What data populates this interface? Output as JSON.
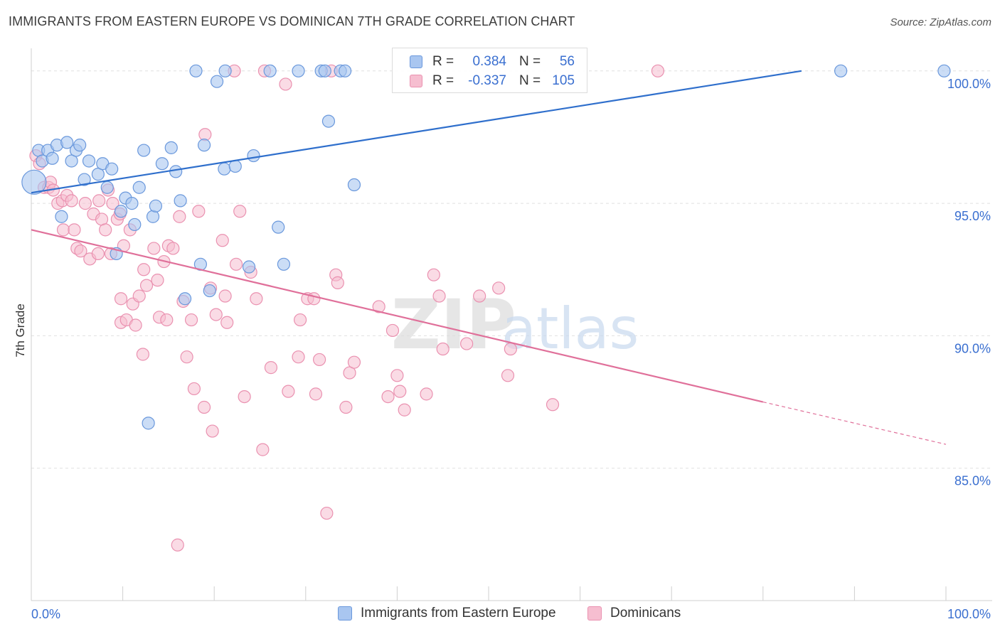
{
  "header": {
    "title": "IMMIGRANTS FROM EASTERN EUROPE VS DOMINICAN 7TH GRADE CORRELATION CHART",
    "source": "Source: ZipAtlas.com"
  },
  "legend": {
    "rows": [
      {
        "r_label": "R =",
        "r_value": "0.384",
        "n_label": "N =",
        "n_value": "56"
      },
      {
        "r_label": "R =",
        "r_value": "-0.337",
        "n_label": "N =",
        "n_value": "105"
      }
    ]
  },
  "bottom_legend": {
    "series1": "Immigrants from Eastern Europe",
    "series2": "Dominicans"
  },
  "colors": {
    "blue_fill": "#a9c6f0",
    "blue_stroke": "#6a98dc",
    "blue_line": "#2f6fcc",
    "pink_fill": "#f6bed0",
    "pink_stroke": "#ea91b0",
    "pink_line": "#e0709a",
    "tick_text": "#3a6fd0",
    "grid": "#e0e0e0"
  },
  "watermark": {
    "part1": "ZIP",
    "part2": "atlas"
  },
  "chart_data": {
    "type": "scatter",
    "ylabel": "7th Grade",
    "xlabel": "",
    "xlim": [
      0,
      100
    ],
    "ylim": [
      80.0,
      100.8
    ],
    "x_tick_labels": [
      {
        "x": 0,
        "label": "0.0%"
      },
      {
        "x": 100,
        "label": "100.0%"
      }
    ],
    "y_tick_labels": [
      {
        "y": 100,
        "label": "100.0%"
      },
      {
        "y": 95,
        "label": "95.0%"
      },
      {
        "y": 90,
        "label": "90.0%"
      },
      {
        "y": 85,
        "label": "85.0%"
      }
    ],
    "series": [
      {
        "name": "Immigrants from Eastern Europe",
        "color": "#a9c6f0",
        "trend": {
          "x0": 0,
          "y0": 95.4,
          "x1": 84.2,
          "y1": 100.0
        },
        "points": [
          [
            0.3,
            95.8
          ],
          [
            0.8,
            97.0
          ],
          [
            1.2,
            96.6
          ],
          [
            1.8,
            97.0
          ],
          [
            2.3,
            96.7
          ],
          [
            2.8,
            97.2
          ],
          [
            3.3,
            94.5
          ],
          [
            3.9,
            97.3
          ],
          [
            4.4,
            96.6
          ],
          [
            4.9,
            97.0
          ],
          [
            5.3,
            97.2
          ],
          [
            5.8,
            95.9
          ],
          [
            6.3,
            96.6
          ],
          [
            7.3,
            96.1
          ],
          [
            7.8,
            96.5
          ],
          [
            8.3,
            95.6
          ],
          [
            8.8,
            96.3
          ],
          [
            9.3,
            93.1
          ],
          [
            9.8,
            94.7
          ],
          [
            10.3,
            95.2
          ],
          [
            11.0,
            95.0
          ],
          [
            11.3,
            94.2
          ],
          [
            11.8,
            95.6
          ],
          [
            12.3,
            97.0
          ],
          [
            12.8,
            86.7
          ],
          [
            13.3,
            94.5
          ],
          [
            13.6,
            94.9
          ],
          [
            14.3,
            96.5
          ],
          [
            15.3,
            97.1
          ],
          [
            15.8,
            96.2
          ],
          [
            16.3,
            95.1
          ],
          [
            16.8,
            91.4
          ],
          [
            18.0,
            100.0
          ],
          [
            18.5,
            92.7
          ],
          [
            18.9,
            97.2
          ],
          [
            19.5,
            91.7
          ],
          [
            20.3,
            99.6
          ],
          [
            21.1,
            96.3
          ],
          [
            21.2,
            100.0
          ],
          [
            22.3,
            96.4
          ],
          [
            23.8,
            92.6
          ],
          [
            24.3,
            96.8
          ],
          [
            26.1,
            100.0
          ],
          [
            27.0,
            94.1
          ],
          [
            27.6,
            92.7
          ],
          [
            29.2,
            100.0
          ],
          [
            31.7,
            100.0
          ],
          [
            32.1,
            100.0
          ],
          [
            32.5,
            98.1
          ],
          [
            33.8,
            100.0
          ],
          [
            34.3,
            100.0
          ],
          [
            35.3,
            95.7
          ],
          [
            88.5,
            100.0
          ],
          [
            99.8,
            100.0
          ]
        ]
      },
      {
        "name": "Dominicans",
        "color": "#f6bed0",
        "trend": {
          "x0": 0,
          "y0": 94.0,
          "x1": 80.0,
          "y1": 87.5,
          "dash_x1": 100,
          "dash_y1": 85.9
        },
        "points": [
          [
            0.5,
            96.8
          ],
          [
            0.9,
            96.5
          ],
          [
            1.4,
            95.6
          ],
          [
            1.9,
            95.6
          ],
          [
            2.1,
            95.8
          ],
          [
            2.4,
            95.5
          ],
          [
            2.9,
            95.0
          ],
          [
            3.4,
            95.1
          ],
          [
            3.5,
            94.0
          ],
          [
            3.9,
            95.3
          ],
          [
            4.4,
            95.1
          ],
          [
            4.7,
            94.0
          ],
          [
            5.0,
            93.3
          ],
          [
            5.4,
            93.2
          ],
          [
            5.9,
            95.0
          ],
          [
            6.4,
            92.9
          ],
          [
            6.8,
            94.6
          ],
          [
            7.3,
            93.1
          ],
          [
            7.4,
            95.1
          ],
          [
            7.7,
            94.4
          ],
          [
            8.1,
            94.0
          ],
          [
            8.4,
            95.5
          ],
          [
            8.7,
            93.1
          ],
          [
            8.9,
            95.0
          ],
          [
            9.4,
            94.4
          ],
          [
            9.7,
            94.6
          ],
          [
            9.8,
            91.4
          ],
          [
            9.8,
            90.5
          ],
          [
            10.1,
            93.4
          ],
          [
            10.4,
            90.6
          ],
          [
            10.8,
            94.0
          ],
          [
            11.1,
            91.2
          ],
          [
            11.4,
            90.4
          ],
          [
            11.8,
            91.5
          ],
          [
            12.2,
            89.3
          ],
          [
            12.3,
            92.5
          ],
          [
            12.6,
            91.9
          ],
          [
            13.4,
            93.3
          ],
          [
            13.8,
            92.1
          ],
          [
            14.0,
            90.7
          ],
          [
            14.5,
            92.8
          ],
          [
            14.8,
            90.6
          ],
          [
            15.0,
            93.4
          ],
          [
            15.5,
            93.3
          ],
          [
            16.2,
            94.5
          ],
          [
            16.6,
            91.3
          ],
          [
            17.0,
            89.2
          ],
          [
            17.5,
            90.6
          ],
          [
            17.8,
            88.0
          ],
          [
            18.3,
            94.7
          ],
          [
            18.9,
            87.3
          ],
          [
            19.0,
            97.6
          ],
          [
            19.6,
            91.8
          ],
          [
            19.8,
            86.4
          ],
          [
            20.2,
            90.8
          ],
          [
            20.9,
            93.6
          ],
          [
            21.2,
            91.5
          ],
          [
            21.4,
            90.5
          ],
          [
            22.2,
            100.0
          ],
          [
            22.4,
            92.7
          ],
          [
            22.8,
            94.7
          ],
          [
            23.3,
            87.7
          ],
          [
            24.0,
            92.4
          ],
          [
            24.6,
            91.4
          ],
          [
            25.3,
            85.7
          ],
          [
            25.5,
            100.0
          ],
          [
            26.2,
            88.8
          ],
          [
            27.8,
            99.5
          ],
          [
            28.1,
            87.9
          ],
          [
            29.2,
            89.2
          ],
          [
            29.4,
            90.6
          ],
          [
            30.2,
            91.4
          ],
          [
            30.9,
            91.4
          ],
          [
            31.1,
            87.8
          ],
          [
            31.5,
            89.1
          ],
          [
            32.3,
            83.3
          ],
          [
            32.8,
            100.0
          ],
          [
            33.3,
            92.3
          ],
          [
            33.5,
            92.0
          ],
          [
            34.4,
            87.3
          ],
          [
            34.8,
            88.6
          ],
          [
            35.3,
            89.0
          ],
          [
            38.0,
            91.1
          ],
          [
            39.0,
            87.7
          ],
          [
            39.5,
            90.2
          ],
          [
            40.0,
            88.5
          ],
          [
            40.3,
            87.9
          ],
          [
            40.8,
            87.2
          ],
          [
            43.2,
            87.8
          ],
          [
            44.0,
            92.3
          ],
          [
            44.6,
            91.5
          ],
          [
            45.0,
            89.5
          ],
          [
            47.6,
            89.7
          ],
          [
            49.0,
            91.5
          ],
          [
            51.1,
            91.8
          ],
          [
            52.1,
            88.5
          ],
          [
            52.4,
            89.5
          ],
          [
            57.0,
            87.4
          ],
          [
            68.5,
            100.0
          ],
          [
            16.0,
            82.1
          ]
        ]
      }
    ]
  }
}
